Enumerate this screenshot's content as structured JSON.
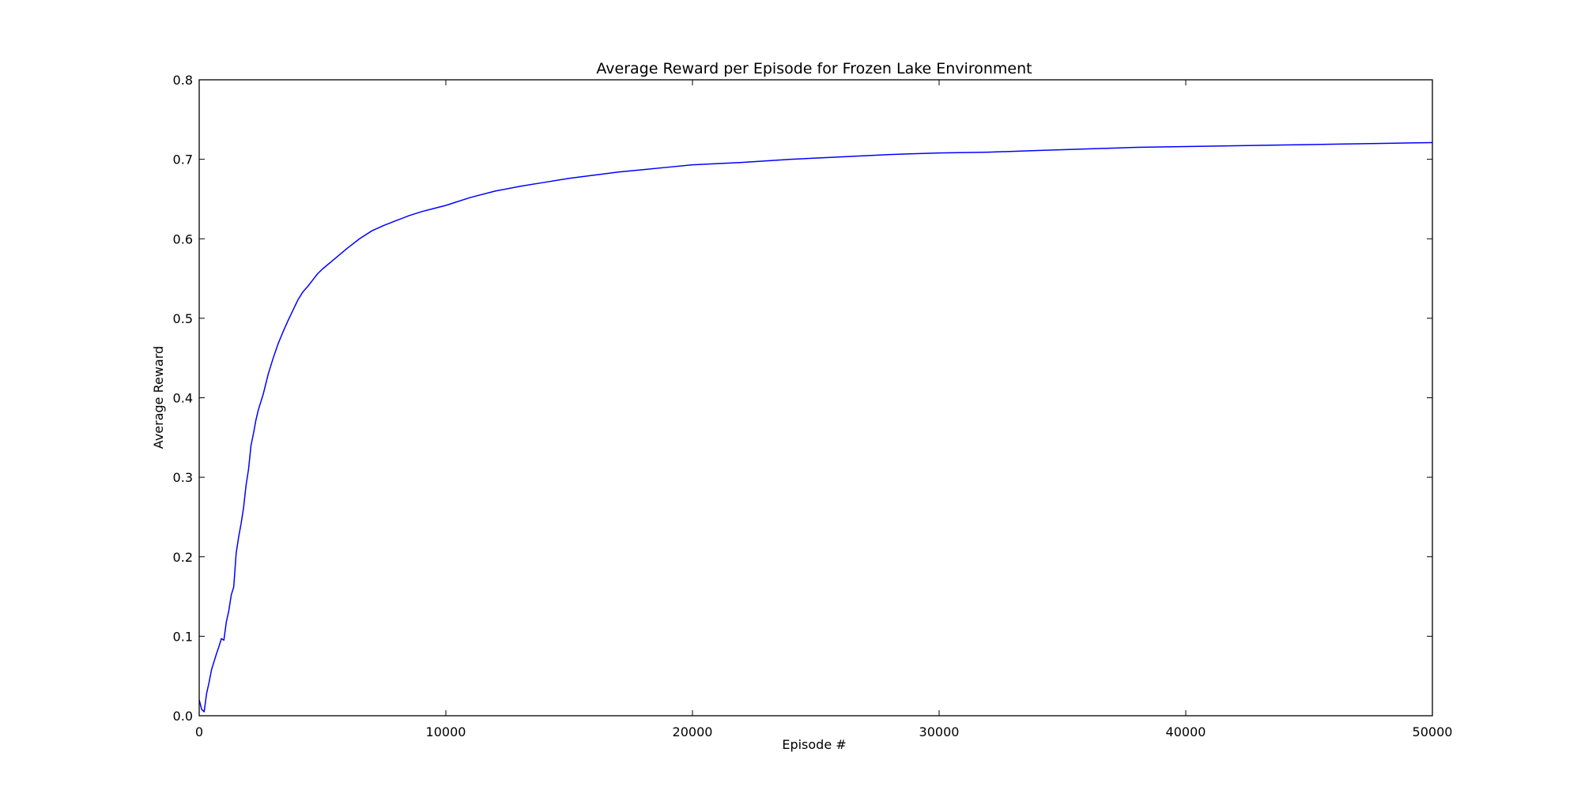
{
  "chart_data": {
    "type": "line",
    "title": "Average Reward per Episode for Frozen Lake Environment",
    "xlabel": "Episode #",
    "ylabel": "Average Reward",
    "xlim": [
      0,
      50000
    ],
    "ylim": [
      0.0,
      0.8
    ],
    "grid": false,
    "x_ticks": [
      0,
      10000,
      20000,
      30000,
      40000,
      50000
    ],
    "x_tick_labels": [
      "0",
      "10000",
      "20000",
      "30000",
      "40000",
      "50000"
    ],
    "y_ticks": [
      0.0,
      0.1,
      0.2,
      0.3,
      0.4,
      0.5,
      0.6,
      0.7,
      0.8
    ],
    "y_tick_labels": [
      "0.0",
      "0.1",
      "0.2",
      "0.3",
      "0.4",
      "0.5",
      "0.6",
      "0.7",
      "0.8"
    ],
    "series": [
      {
        "color": "#0000ff",
        "x": [
          0,
          100,
          200,
          300,
          400,
          500,
          600,
          700,
          800,
          900,
          1000,
          1100,
          1200,
          1300,
          1400,
          1500,
          1600,
          1700,
          1800,
          1900,
          2000,
          2100,
          2200,
          2300,
          2400,
          2600,
          2800,
          3000,
          3200,
          3400,
          3600,
          3800,
          4000,
          4200,
          4400,
          4600,
          4800,
          5000,
          5500,
          6000,
          6500,
          7000,
          7500,
          8000,
          8500,
          9000,
          9500,
          10000,
          11000,
          12000,
          13000,
          14000,
          15000,
          16000,
          17000,
          18000,
          19000,
          20000,
          22000,
          24000,
          26000,
          28000,
          30000,
          32000,
          34000,
          36000,
          38000,
          40000,
          42000,
          44000,
          46000,
          48000,
          50000
        ],
        "y": [
          0.02,
          0.008,
          0.005,
          0.028,
          0.042,
          0.058,
          0.068,
          0.078,
          0.087,
          0.097,
          0.095,
          0.118,
          0.132,
          0.152,
          0.162,
          0.205,
          0.225,
          0.242,
          0.262,
          0.29,
          0.31,
          0.34,
          0.355,
          0.372,
          0.385,
          0.405,
          0.43,
          0.45,
          0.468,
          0.483,
          0.497,
          0.51,
          0.523,
          0.533,
          0.54,
          0.548,
          0.556,
          0.562,
          0.575,
          0.588,
          0.6,
          0.61,
          0.617,
          0.623,
          0.629,
          0.634,
          0.638,
          0.642,
          0.652,
          0.66,
          0.666,
          0.671,
          0.676,
          0.68,
          0.684,
          0.687,
          0.69,
          0.693,
          0.696,
          0.7,
          0.703,
          0.706,
          0.708,
          0.709,
          0.711,
          0.713,
          0.715,
          0.716,
          0.717,
          0.718,
          0.719,
          0.72,
          0.721
        ]
      }
    ]
  }
}
